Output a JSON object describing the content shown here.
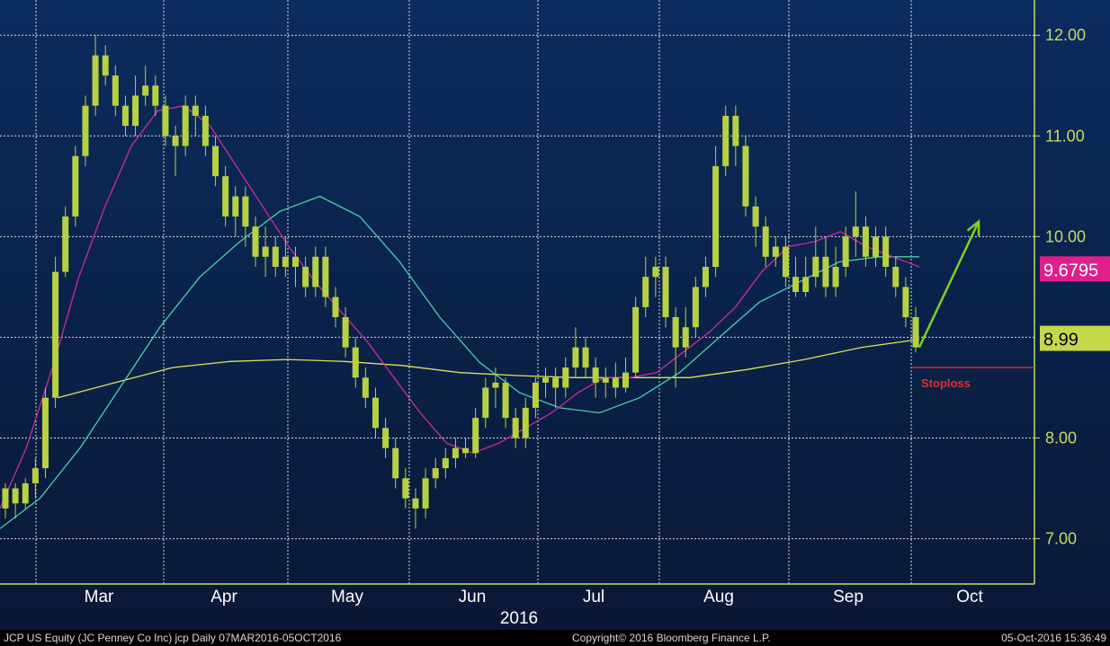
{
  "colors": {
    "background_top": "#0a2a5a",
    "background_bottom": "#0b1a3a",
    "candle": "#b8d043",
    "axis": "#c8d86a",
    "ma_short": "#d02a9a",
    "ma_mid": "#4cd0a8",
    "ma_long": "#e0e060",
    "arrow": "#7ed321",
    "stoploss": "#e03030",
    "label_pink": "#e0208a",
    "label_yellow": "#c6d84a"
  },
  "chart_data": {
    "type": "candlestick",
    "ticker": "JCP US Equity",
    "ylim": [
      6.55,
      12.35
    ],
    "yticks": [
      "12.00",
      "11.00",
      "10.00",
      "8.00",
      "7.00"
    ],
    "xlabels": [
      "Mar",
      "Apr",
      "May",
      "Jun",
      "Jul",
      "Aug",
      "Sep",
      "Oct"
    ],
    "year_label": "2016",
    "series": [
      {
        "name": "price",
        "values": [
          [
            7.3,
            7.5,
            7.2,
            7.55
          ],
          [
            7.5,
            7.35,
            7.2,
            7.55
          ],
          [
            7.35,
            7.55,
            7.3,
            7.6
          ],
          [
            7.55,
            7.7,
            7.4,
            7.8
          ],
          [
            7.7,
            8.4,
            7.6,
            8.5
          ],
          [
            8.4,
            9.65,
            8.3,
            9.8
          ],
          [
            9.65,
            10.2,
            9.6,
            10.3
          ],
          [
            10.2,
            10.8,
            10.1,
            10.9
          ],
          [
            10.8,
            11.3,
            10.7,
            11.4
          ],
          [
            11.3,
            11.8,
            11.2,
            12.0
          ],
          [
            11.8,
            11.6,
            11.5,
            11.9
          ],
          [
            11.6,
            11.3,
            11.2,
            11.7
          ],
          [
            11.3,
            11.1,
            11.0,
            11.4
          ],
          [
            11.1,
            11.4,
            11.0,
            11.6
          ],
          [
            11.4,
            11.5,
            11.3,
            11.7
          ],
          [
            11.5,
            11.3,
            11.2,
            11.6
          ],
          [
            11.3,
            11.0,
            10.9,
            11.4
          ],
          [
            11.0,
            10.9,
            10.6,
            11.1
          ],
          [
            10.9,
            11.3,
            10.8,
            11.4
          ],
          [
            11.3,
            11.2,
            11.0,
            11.4
          ],
          [
            11.2,
            10.9,
            10.8,
            11.3
          ],
          [
            10.9,
            10.6,
            10.5,
            11.0
          ],
          [
            10.6,
            10.2,
            10.1,
            10.7
          ],
          [
            10.2,
            10.4,
            10.0,
            10.5
          ],
          [
            10.4,
            10.1,
            9.9,
            10.5
          ],
          [
            10.1,
            9.8,
            9.7,
            10.2
          ],
          [
            9.8,
            9.9,
            9.6,
            10.1
          ],
          [
            9.9,
            9.7,
            9.6,
            10.0
          ],
          [
            9.7,
            9.8,
            9.6,
            10.0
          ],
          [
            9.8,
            9.7,
            9.5,
            9.9
          ],
          [
            9.7,
            9.5,
            9.4,
            9.8
          ],
          [
            9.5,
            9.8,
            9.4,
            9.9
          ],
          [
            9.8,
            9.4,
            9.3,
            9.9
          ],
          [
            9.4,
            9.2,
            9.1,
            9.5
          ],
          [
            9.2,
            8.9,
            8.8,
            9.3
          ],
          [
            8.9,
            8.6,
            8.5,
            9.0
          ],
          [
            8.6,
            8.4,
            8.3,
            8.7
          ],
          [
            8.4,
            8.1,
            8.0,
            8.5
          ],
          [
            8.1,
            7.9,
            7.8,
            8.2
          ],
          [
            7.9,
            7.6,
            7.5,
            8.0
          ],
          [
            7.6,
            7.4,
            7.3,
            7.7
          ],
          [
            7.4,
            7.3,
            7.1,
            7.5
          ],
          [
            7.3,
            7.6,
            7.2,
            7.7
          ],
          [
            7.6,
            7.7,
            7.5,
            7.8
          ],
          [
            7.7,
            7.8,
            7.6,
            7.9
          ],
          [
            7.8,
            7.9,
            7.7,
            8.0
          ],
          [
            7.9,
            7.85,
            7.8,
            8.0
          ],
          [
            7.85,
            8.2,
            7.8,
            8.3
          ],
          [
            8.2,
            8.5,
            8.1,
            8.6
          ],
          [
            8.5,
            8.55,
            8.3,
            8.7
          ],
          [
            8.55,
            8.2,
            8.1,
            8.6
          ],
          [
            8.2,
            8.0,
            7.9,
            8.3
          ],
          [
            8.0,
            8.3,
            7.9,
            8.4
          ],
          [
            8.3,
            8.55,
            8.2,
            8.6
          ],
          [
            8.55,
            8.6,
            8.4,
            8.7
          ],
          [
            8.6,
            8.5,
            8.3,
            8.7
          ],
          [
            8.5,
            8.7,
            8.4,
            8.8
          ],
          [
            8.7,
            8.9,
            8.6,
            9.1
          ],
          [
            8.9,
            8.7,
            8.6,
            9.0
          ],
          [
            8.7,
            8.55,
            8.4,
            8.8
          ],
          [
            8.55,
            8.6,
            8.4,
            8.7
          ],
          [
            8.6,
            8.5,
            8.4,
            8.75
          ],
          [
            8.5,
            8.65,
            8.45,
            8.8
          ],
          [
            8.65,
            9.3,
            8.6,
            9.4
          ],
          [
            9.3,
            9.6,
            9.2,
            9.8
          ],
          [
            9.6,
            9.7,
            9.4,
            9.8
          ],
          [
            9.7,
            9.2,
            9.1,
            9.8
          ],
          [
            9.2,
            8.9,
            8.5,
            9.3
          ],
          [
            8.9,
            9.1,
            8.8,
            9.3
          ],
          [
            9.1,
            9.5,
            9.0,
            9.6
          ],
          [
            9.5,
            9.7,
            9.4,
            9.8
          ],
          [
            9.7,
            10.7,
            9.6,
            10.9
          ],
          [
            10.7,
            11.2,
            10.6,
            11.3
          ],
          [
            11.2,
            10.9,
            10.7,
            11.3
          ],
          [
            10.9,
            10.3,
            10.2,
            11.0
          ],
          [
            10.3,
            10.1,
            9.9,
            10.4
          ],
          [
            10.1,
            9.8,
            9.7,
            10.2
          ],
          [
            9.8,
            9.9,
            9.7,
            10.0
          ],
          [
            9.9,
            9.6,
            9.5,
            10.0
          ],
          [
            9.6,
            9.45,
            9.4,
            9.8
          ],
          [
            9.45,
            9.6,
            9.4,
            9.8
          ],
          [
            9.6,
            9.8,
            9.5,
            10.1
          ],
          [
            9.8,
            9.5,
            9.4,
            10.0
          ],
          [
            9.5,
            9.7,
            9.4,
            9.9
          ],
          [
            9.7,
            10.0,
            9.6,
            10.1
          ],
          [
            10.0,
            10.1,
            9.8,
            10.45
          ],
          [
            10.1,
            9.8,
            9.7,
            10.2
          ],
          [
            9.8,
            10.0,
            9.7,
            10.1
          ],
          [
            10.0,
            9.7,
            9.6,
            10.1
          ],
          [
            9.7,
            9.5,
            9.4,
            9.8
          ],
          [
            9.5,
            9.2,
            9.1,
            9.6
          ],
          [
            9.2,
            8.9,
            8.85,
            9.3
          ]
        ]
      },
      {
        "name": "ma_short",
        "values": [
          7.3,
          7.9,
          8.7,
          9.6,
          10.3,
          10.9,
          11.25,
          11.3,
          11.1,
          10.7,
          10.3,
          9.9,
          9.55,
          9.25,
          8.95,
          8.6,
          8.25,
          7.95,
          7.85,
          7.95,
          8.1,
          8.25,
          8.45,
          8.6,
          8.6,
          8.65,
          8.85,
          9.05,
          9.3,
          9.65,
          9.9,
          9.95,
          10.05,
          9.9,
          9.8,
          9.7
        ]
      },
      {
        "name": "ma_mid",
        "values": [
          7.1,
          7.4,
          7.9,
          8.5,
          9.1,
          9.6,
          9.95,
          10.25,
          10.4,
          10.2,
          9.75,
          9.2,
          8.75,
          8.45,
          8.3,
          8.25,
          8.4,
          8.65,
          9.0,
          9.35,
          9.55,
          9.75,
          9.8,
          9.8
        ]
      },
      {
        "name": "ma_long",
        "values": [
          8.4,
          8.55,
          8.7,
          8.76,
          8.78,
          8.76,
          8.72,
          8.65,
          8.62,
          8.6,
          8.6,
          8.6,
          8.68,
          8.78,
          8.9,
          8.98
        ]
      }
    ],
    "price_labels": [
      "9.6795",
      "8.99"
    ],
    "annotation": "Stoploss",
    "stoploss_value": 8.7,
    "arrow": {
      "from": 8.9,
      "to": 10.15
    }
  },
  "footer": {
    "left": "JCP US Equity (JC Penney Co Inc) jcp  Daily 07MAR2016-05OCT2016",
    "center": "Copyright© 2016 Bloomberg Finance L.P.",
    "right": "05-Oct-2016 15:36:49"
  }
}
